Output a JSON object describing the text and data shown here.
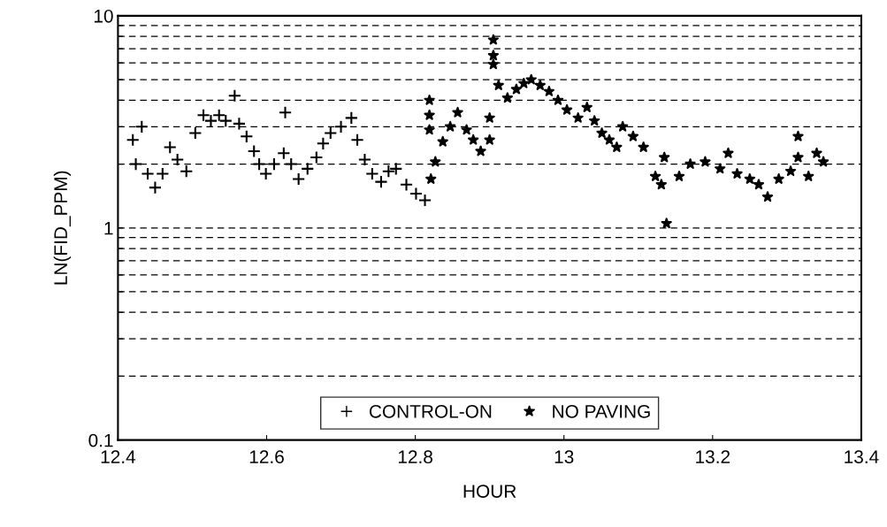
{
  "chart_data": {
    "type": "scatter",
    "xlabel": "HOUR",
    "ylabel": "LN(FID_PPM)",
    "log": "y",
    "grid": "y",
    "legend": "bottom",
    "xlim": [
      12.4,
      13.4
    ],
    "xticks": [
      12.4,
      12.6,
      12.8,
      13,
      13.2,
      13.4
    ],
    "ylim": [
      0.1,
      10
    ],
    "yticks": [
      0.1,
      {
        "value": 0.2,
        "label": null
      },
      {
        "value": 0.3,
        "label": null
      },
      {
        "value": 0.4,
        "label": null
      },
      {
        "value": 0.5,
        "label": null
      },
      {
        "value": 0.6,
        "label": null
      },
      {
        "value": 0.7,
        "label": null
      },
      {
        "value": 0.8,
        "label": null
      },
      {
        "value": 0.9,
        "label": null
      },
      1,
      {
        "value": 2,
        "label": null
      },
      {
        "value": 3,
        "label": null
      },
      {
        "value": 4,
        "label": null
      },
      {
        "value": 5,
        "label": null
      },
      {
        "value": 6,
        "label": null
      },
      {
        "value": 7,
        "label": null
      },
      {
        "value": 8,
        "label": null
      },
      {
        "value": 9,
        "label": null
      },
      10
    ],
    "series": [
      {
        "name": "CONTROL-ON",
        "color": "#000000",
        "marker": "cross",
        "x": [
          12.42,
          12.424,
          12.432,
          12.44,
          12.45,
          12.46,
          12.47,
          12.48,
          12.492,
          12.504,
          12.515,
          12.525,
          12.536,
          12.545,
          12.557,
          12.563,
          12.573,
          12.583,
          12.59,
          12.599,
          12.61,
          12.623,
          12.625,
          12.633,
          12.643,
          12.655,
          12.667,
          12.676,
          12.686,
          12.7,
          12.714,
          12.722,
          12.732,
          12.742,
          12.754,
          12.764,
          12.774,
          12.788,
          12.801,
          12.813
        ],
        "values": [
          2.6,
          2.0,
          3.0,
          1.8,
          1.55,
          1.8,
          2.4,
          2.1,
          1.85,
          2.8,
          3.4,
          3.2,
          3.4,
          3.2,
          4.2,
          3.1,
          2.7,
          2.3,
          2.0,
          1.8,
          2.0,
          2.25,
          3.5,
          2.0,
          1.7,
          1.9,
          2.15,
          2.5,
          2.8,
          3.0,
          3.3,
          2.6,
          2.1,
          1.8,
          1.65,
          1.85,
          1.9,
          1.6,
          1.45,
          1.35
        ]
      },
      {
        "name": "NO PAVING",
        "color": "#000000",
        "marker": "star",
        "x": [
          12.819,
          12.819,
          12.819,
          12.821,
          12.827,
          12.837,
          12.847,
          12.857,
          12.869,
          12.878,
          12.888,
          12.9,
          12.9,
          12.905,
          12.905,
          12.905,
          12.912,
          12.924,
          12.936,
          12.946,
          12.956,
          12.968,
          12.98,
          12.992,
          13.004,
          13.019,
          13.031,
          13.041,
          13.051,
          13.061,
          13.071,
          13.079,
          13.093,
          13.107,
          13.123,
          13.131,
          13.135,
          13.138,
          13.155,
          13.17,
          13.19,
          13.21,
          13.221,
          13.233,
          13.25,
          13.262,
          13.274,
          13.289,
          13.305,
          13.315,
          13.315,
          13.329,
          13.34,
          13.349
        ],
        "values": [
          4.0,
          3.4,
          2.9,
          1.7,
          2.05,
          2.55,
          3.0,
          3.5,
          2.9,
          2.6,
          2.3,
          2.6,
          3.3,
          7.7,
          6.5,
          5.9,
          4.7,
          4.1,
          4.5,
          4.8,
          5.0,
          4.7,
          4.4,
          4.0,
          3.6,
          3.3,
          3.7,
          3.2,
          2.8,
          2.6,
          2.4,
          3.0,
          2.7,
          2.4,
          1.75,
          1.6,
          2.15,
          1.05,
          1.75,
          2.0,
          2.05,
          1.9,
          2.25,
          1.8,
          1.7,
          1.6,
          1.4,
          1.7,
          1.85,
          2.7,
          2.15,
          1.75,
          2.25,
          2.05
        ]
      }
    ]
  }
}
